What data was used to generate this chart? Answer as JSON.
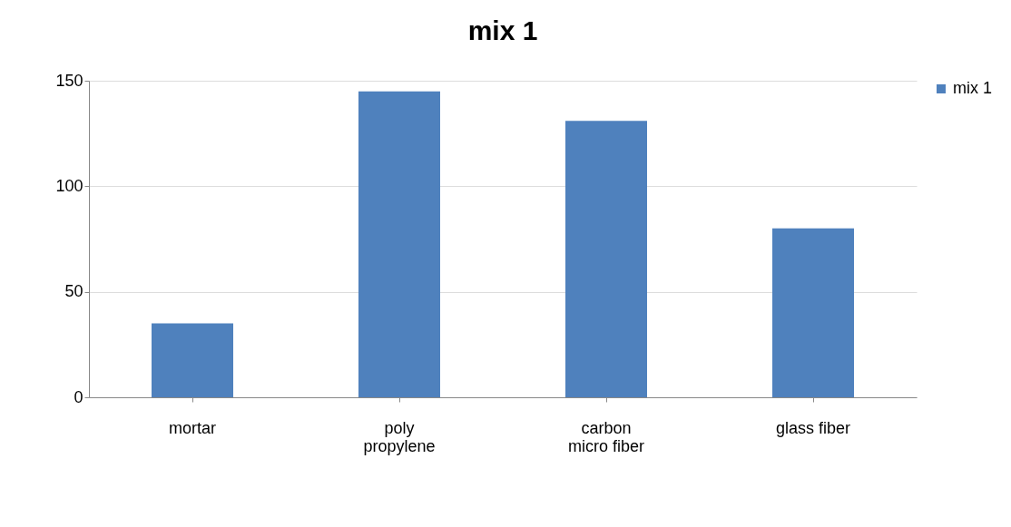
{
  "chart_data": {
    "type": "bar",
    "title": "mix 1",
    "categories": [
      "mortar",
      "poly propylene",
      "carbon micro fiber",
      "glass fiber"
    ],
    "series": [
      {
        "name": "mix 1",
        "color": "#4f81bd",
        "values": [
          35,
          145,
          131,
          80
        ]
      }
    ],
    "ylim": [
      0,
      150
    ],
    "yticks": [
      0,
      50,
      100,
      150
    ],
    "grid": "y",
    "legend": "right"
  }
}
